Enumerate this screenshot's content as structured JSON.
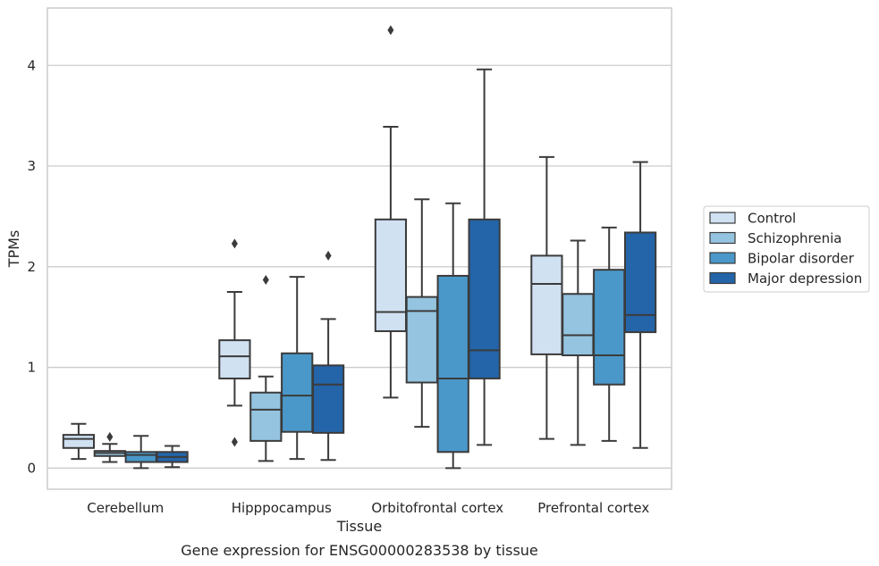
{
  "chart_data": {
    "type": "box",
    "caption": "Gene expression for ENSG00000283538 by tissue",
    "xlabel": "Tissue",
    "ylabel": "TPMs",
    "ylim": [
      -0.21,
      4.57
    ],
    "yticks": [
      0,
      1,
      2,
      3,
      4
    ],
    "grid": "horizontal",
    "legend_position": "right",
    "categories": [
      "Cerebellum",
      "Hipppocampus",
      "Orbitofrontal cortex",
      "Prefrontal cortex"
    ],
    "series": [
      {
        "name": "Control",
        "color": "#d0e1f2",
        "boxes": [
          {
            "whisker_low": 0.09,
            "q1": 0.2,
            "median": 0.29,
            "q3": 0.33,
            "whisker_high": 0.44,
            "outliers": []
          },
          {
            "whisker_low": 0.62,
            "q1": 0.89,
            "median": 1.11,
            "q3": 1.27,
            "whisker_high": 1.75,
            "outliers": [
              2.23,
              0.26
            ]
          },
          {
            "whisker_low": 0.7,
            "q1": 1.36,
            "median": 1.55,
            "q3": 2.47,
            "whisker_high": 3.39,
            "outliers": [
              4.35
            ]
          },
          {
            "whisker_low": 0.29,
            "q1": 1.13,
            "median": 1.83,
            "q3": 2.11,
            "whisker_high": 3.09,
            "outliers": []
          }
        ]
      },
      {
        "name": "Schizophrenia",
        "color": "#94c4df",
        "boxes": [
          {
            "whisker_low": 0.06,
            "q1": 0.12,
            "median": 0.15,
            "q3": 0.17,
            "whisker_high": 0.24,
            "outliers": [
              0.31
            ]
          },
          {
            "whisker_low": 0.07,
            "q1": 0.27,
            "median": 0.58,
            "q3": 0.75,
            "whisker_high": 0.91,
            "outliers": [
              1.87
            ]
          },
          {
            "whisker_low": 0.41,
            "q1": 0.85,
            "median": 1.56,
            "q3": 1.7,
            "whisker_high": 2.67,
            "outliers": []
          },
          {
            "whisker_low": 0.23,
            "q1": 1.12,
            "median": 1.32,
            "q3": 1.73,
            "whisker_high": 2.26,
            "outliers": []
          }
        ]
      },
      {
        "name": "Bipolar disorder",
        "color": "#4a98c9",
        "boxes": [
          {
            "whisker_low": 0.0,
            "q1": 0.06,
            "median": 0.13,
            "q3": 0.16,
            "whisker_high": 0.32,
            "outliers": []
          },
          {
            "whisker_low": 0.09,
            "q1": 0.36,
            "median": 0.72,
            "q3": 1.14,
            "whisker_high": 1.9,
            "outliers": []
          },
          {
            "whisker_low": 0.0,
            "q1": 0.16,
            "median": 0.89,
            "q3": 1.91,
            "whisker_high": 2.63,
            "outliers": []
          },
          {
            "whisker_low": 0.27,
            "q1": 0.83,
            "median": 1.12,
            "q3": 1.97,
            "whisker_high": 2.39,
            "outliers": []
          }
        ]
      },
      {
        "name": "Major depression",
        "color": "#2464a9",
        "boxes": [
          {
            "whisker_low": 0.01,
            "q1": 0.06,
            "median": 0.11,
            "q3": 0.16,
            "whisker_high": 0.22,
            "outliers": []
          },
          {
            "whisker_low": 0.08,
            "q1": 0.35,
            "median": 0.83,
            "q3": 1.02,
            "whisker_high": 1.48,
            "outliers": [
              2.11
            ]
          },
          {
            "whisker_low": 0.23,
            "q1": 0.89,
            "median": 1.17,
            "q3": 2.47,
            "whisker_high": 3.96,
            "outliers": []
          },
          {
            "whisker_low": 0.2,
            "q1": 1.35,
            "median": 1.52,
            "q3": 2.34,
            "whisker_high": 3.04,
            "outliers": []
          }
        ]
      }
    ]
  }
}
